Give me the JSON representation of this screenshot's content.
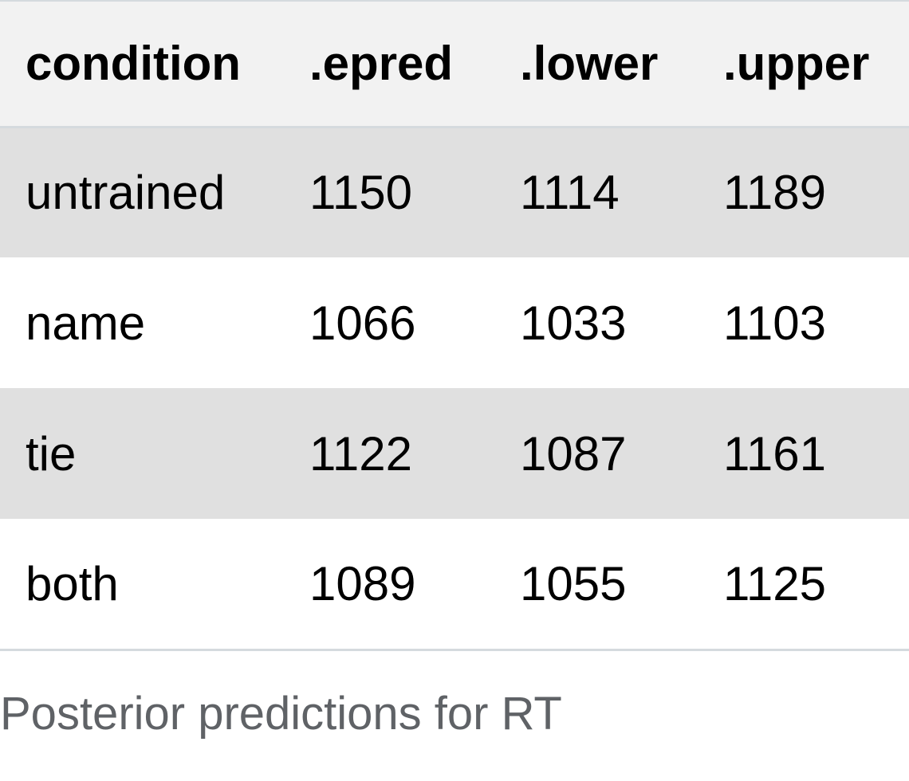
{
  "table": {
    "headers": [
      "condition",
      ".epred",
      ".lower",
      ".upper"
    ],
    "rows": [
      [
        "untrained",
        "1150",
        "1114",
        "1189"
      ],
      [
        "name",
        "1066",
        "1033",
        "1103"
      ],
      [
        "tie",
        "1122",
        "1087",
        "1161"
      ],
      [
        "both",
        "1089",
        "1055",
        "1125"
      ]
    ]
  },
  "caption": "Posterior predictions for RT",
  "colors": {
    "header_bg": "#f2f2f2",
    "stripe_bg": "#e0e0e0",
    "rule": "#d5dade",
    "caption_text": "#5f6266"
  }
}
